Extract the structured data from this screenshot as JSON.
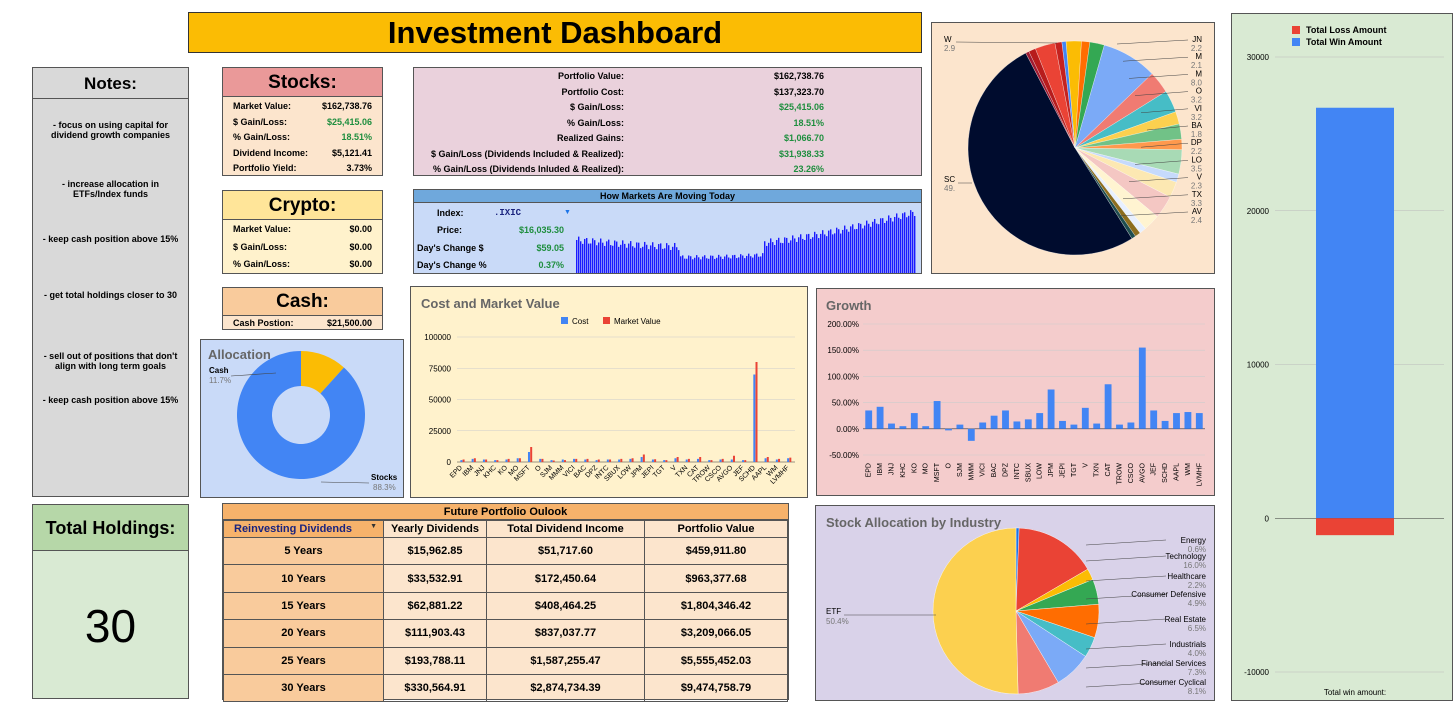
{
  "title": "Investment Dashboard",
  "notes": {
    "header": "Notes:",
    "items": [
      "- focus on using capital for dividend growth companies",
      "- increase allocation in ETFs/Index funds",
      "- keep cash position above 15%",
      "- get total holdings closer to 30",
      "- sell out of positions that don't align with long term goals",
      "- keep cash position above 15%"
    ]
  },
  "holdings": {
    "label": "Total Holdings:",
    "value": "30"
  },
  "stocks": {
    "header": "Stocks:",
    "rows": [
      {
        "label": "Market Value:",
        "value": "$162,738.76"
      },
      {
        "label": "$ Gain/Loss:",
        "value": "$25,415.06"
      },
      {
        "label": "% Gain/Loss:",
        "value": "18.51%"
      },
      {
        "label": "Dividend Income:",
        "value": "$5,121.41"
      },
      {
        "label": "Portfolio Yield:",
        "value": "3.73%"
      }
    ]
  },
  "crypto": {
    "header": "Crypto:",
    "rows": [
      {
        "label": "Market Value:",
        "value": "$0.00"
      },
      {
        "label": "$ Gain/Loss:",
        "value": "$0.00"
      },
      {
        "label": "% Gain/Loss:",
        "value": "$0.00"
      }
    ]
  },
  "cash": {
    "header": "Cash:",
    "label": "Cash Postion:",
    "value": "$21,500.00"
  },
  "portfolio": {
    "rows": [
      {
        "label": "Portfolio Value:",
        "value": "$162,738.76"
      },
      {
        "label": "Portfolio Cost:",
        "value": "$137,323.70"
      },
      {
        "label": "$ Gain/Loss:",
        "value": "$25,415.06"
      },
      {
        "label": "% Gain/Loss:",
        "value": "18.51%"
      },
      {
        "label": "Realized Gains:",
        "value": "$1,066.70"
      },
      {
        "label": "$ Gain/Loss (Dividends Included & Realized):",
        "value": "$31,938.33"
      },
      {
        "label": "% Gain/Loss (Dividends Inluded & Realized):",
        "value": "23.26%"
      }
    ]
  },
  "markets": {
    "header": "How Markets Are Moving Today",
    "index_label": "Index:",
    "index_value": ".IXIC",
    "price_label": "Price:",
    "price_value": "$16,035.30",
    "change_label": "Day's Change $",
    "change_value": "$59.05",
    "pct_label": "Day's Change %",
    "pct_value": "0.37%"
  },
  "allocation": {
    "title": "Allocation",
    "slices": [
      {
        "label": "Cash",
        "pct": "11.7%",
        "value": 11.7,
        "color": "#fbbc04"
      },
      {
        "label": "Stocks",
        "pct": "88.3%",
        "value": 88.3,
        "color": "#4285f4"
      }
    ]
  },
  "future": {
    "header": "Future Portfolio Oulook",
    "columns": [
      "Reinvesting Dividends",
      "Yearly Dividends",
      "Total Dividend Income",
      "Portfolio Value"
    ],
    "rows": [
      [
        "5 Years",
        "$15,962.85",
        "$51,717.60",
        "$459,911.80"
      ],
      [
        "10 Years",
        "$33,532.91",
        "$172,450.64",
        "$963,377.68"
      ],
      [
        "15 Years",
        "$62,881.22",
        "$408,464.25",
        "$1,804,346.42"
      ],
      [
        "20 Years",
        "$111,903.43",
        "$837,037.77",
        "$3,209,066.05"
      ],
      [
        "25 Years",
        "$193,788.11",
        "$1,587,255.47",
        "$5,555,452.03"
      ],
      [
        "30 Years",
        "$330,564.91",
        "$2,874,734.39",
        "$9,474,758.79"
      ]
    ]
  },
  "chart_data": [
    {
      "id": "cost-market",
      "type": "bar",
      "title": "Cost and Market Value",
      "categories": [
        "EPD",
        "IBM",
        "JNJ",
        "KHC",
        "KO",
        "MO",
        "MSFT",
        "O",
        "SJM",
        "MMM",
        "VICI",
        "BAC",
        "DPZ",
        "INTC",
        "SBUX",
        "LOW",
        "JPM",
        "JEPI",
        "TGT",
        "V",
        "TXN",
        "CAT",
        "TROW",
        "CSCO",
        "AVGO",
        "JEF",
        "SCHD",
        "AAPL",
        "WM",
        "LVMHF"
      ],
      "series": [
        {
          "name": "Cost",
          "color": "#4285f4",
          "values": [
            1500,
            2500,
            2000,
            1500,
            2000,
            3000,
            8000,
            2500,
            1500,
            2000,
            2500,
            2000,
            1500,
            2000,
            2000,
            2500,
            4000,
            2000,
            1500,
            3000,
            2000,
            2500,
            1500,
            2000,
            2000,
            1500,
            70000,
            3000,
            2000,
            3000
          ]
        },
        {
          "name": "Market Value",
          "color": "#ea4335",
          "values": [
            2000,
            3000,
            2000,
            1500,
            2500,
            3000,
            12000,
            2500,
            1200,
            1500,
            2500,
            2500,
            2000,
            2000,
            2500,
            3000,
            6000,
            2200,
            1500,
            4000,
            2500,
            4000,
            1500,
            2500,
            5000,
            1500,
            80000,
            4000,
            2500,
            3500
          ]
        }
      ],
      "ylim": [
        0,
        100000
      ],
      "yticks": [
        "0",
        "25000",
        "50000",
        "75000",
        "100000"
      ]
    },
    {
      "id": "growth",
      "type": "bar",
      "title": "Growth",
      "categories": [
        "EPD",
        "IBM",
        "JNJ",
        "KHC",
        "KO",
        "MO",
        "MSFT",
        "O",
        "SJM",
        "MMM",
        "VICI",
        "BAC",
        "DPZ",
        "INTC",
        "SBUX",
        "LOW",
        "JPM",
        "JEPI",
        "TGT",
        "V",
        "TXN",
        "CAT",
        "TROW",
        "CSCO",
        "AVGO",
        "JEF",
        "SCHD",
        "AAPL",
        "WM",
        "LVMHF"
      ],
      "series": [
        {
          "name": "Growth",
          "color": "#4285f4",
          "values": [
            35,
            42,
            10,
            5,
            30,
            5,
            53,
            -3,
            8,
            -23,
            12,
            25,
            35,
            14,
            18,
            30,
            75,
            15,
            8,
            40,
            10,
            85,
            8,
            12,
            155,
            35,
            15,
            30,
            32,
            30
          ]
        }
      ],
      "ylim": [
        -50,
        200
      ],
      "yticks": [
        "-50.00%",
        "0.00%",
        "50.00%",
        "100.00%",
        "150.00%",
        "200.00%"
      ]
    },
    {
      "id": "win-loss",
      "type": "bar",
      "series": [
        {
          "name": "Total Loss Amount",
          "color": "#ea4335",
          "values": [
            -1100
          ]
        },
        {
          "name": "Total Win Amount",
          "color": "#4285f4",
          "values": [
            26700
          ]
        }
      ],
      "ylim": [
        -10000,
        30000
      ],
      "yticks": [
        "-10000",
        "0",
        "10000",
        "20000",
        "30000"
      ],
      "footer": "Total win amount:"
    },
    {
      "id": "industry",
      "type": "pie",
      "title": "Stock Allocation by Industry",
      "slices": [
        {
          "label": "Energy",
          "pct": "0.6%",
          "value": 0.6,
          "color": "#1a73e8"
        },
        {
          "label": "Technology",
          "pct": "16.0%",
          "value": 16.0,
          "color": "#ea4335"
        },
        {
          "label": "Healthcare",
          "pct": "2.2%",
          "value": 2.2,
          "color": "#fbbc04"
        },
        {
          "label": "Consumer Defensive",
          "pct": "4.9%",
          "value": 4.9,
          "color": "#34a853"
        },
        {
          "label": "Real Estate",
          "pct": "6.5%",
          "value": 6.5,
          "color": "#ff6d01"
        },
        {
          "label": "Industrials",
          "pct": "4.0%",
          "value": 4.0,
          "color": "#46bdc6"
        },
        {
          "label": "Financial Services",
          "pct": "7.3%",
          "value": 7.3,
          "color": "#7baaf7"
        },
        {
          "label": "Consumer Cyclical",
          "pct": "8.1%",
          "value": 8.1,
          "color": "#f07b72"
        },
        {
          "label": "ETF",
          "pct": "50.4%",
          "value": 50.4,
          "color": "#fcd04f"
        }
      ]
    },
    {
      "id": "holdings-pie",
      "type": "pie",
      "labels": [
        {
          "name": "W",
          "pct": "2.9"
        },
        {
          "name": "JN",
          "pct": "2.2"
        },
        {
          "name": "M",
          "pct": "2.1"
        },
        {
          "name": "M",
          "pct": "8.0"
        },
        {
          "name": "O",
          "pct": "3.2"
        },
        {
          "name": "VI",
          "pct": "3.2"
        },
        {
          "name": "BA",
          "pct": "1.8"
        },
        {
          "name": "DP",
          "pct": "2.2"
        },
        {
          "name": "LO",
          "pct": "3.5"
        },
        {
          "name": "V",
          "pct": "2.3"
        },
        {
          "name": "TX",
          "pct": "3.3"
        },
        {
          "name": "AV",
          "pct": "2.4"
        },
        {
          "name": "SC",
          "pct": "49."
        }
      ],
      "slices": [
        {
          "value": 2.9,
          "color": "#ea4335"
        },
        {
          "value": 1.0,
          "color": "#c5221f"
        },
        {
          "value": 0.6,
          "color": "#4285f4"
        },
        {
          "value": 2.2,
          "color": "#fbbc04"
        },
        {
          "value": 1.2,
          "color": "#ff6d01"
        },
        {
          "value": 2.1,
          "color": "#34a853"
        },
        {
          "value": 8.0,
          "color": "#7baaf7"
        },
        {
          "value": 3.2,
          "color": "#f07b72"
        },
        {
          "value": 3.2,
          "color": "#46bdc6"
        },
        {
          "value": 1.8,
          "color": "#fcd04f"
        },
        {
          "value": 2.2,
          "color": "#71c287"
        },
        {
          "value": 1.5,
          "color": "#ff994d"
        },
        {
          "value": 3.5,
          "color": "#a8dab5"
        },
        {
          "value": 1.2,
          "color": "#c6dafc"
        },
        {
          "value": 2.3,
          "color": "#fce8b2"
        },
        {
          "value": 3.3,
          "color": "#f4c7c3"
        },
        {
          "value": 2.4,
          "color": "#fff4d1"
        },
        {
          "value": 1.0,
          "color": "#e8f0fe"
        },
        {
          "value": 0.8,
          "color": "#8c6d1f"
        },
        {
          "value": 0.6,
          "color": "#1e4d4f"
        },
        {
          "value": 49.0,
          "color": "#000c2e"
        },
        {
          "value": 0.5,
          "color": "#9e1b32"
        },
        {
          "value": 1.0,
          "color": "#b71c1c"
        }
      ]
    }
  ]
}
